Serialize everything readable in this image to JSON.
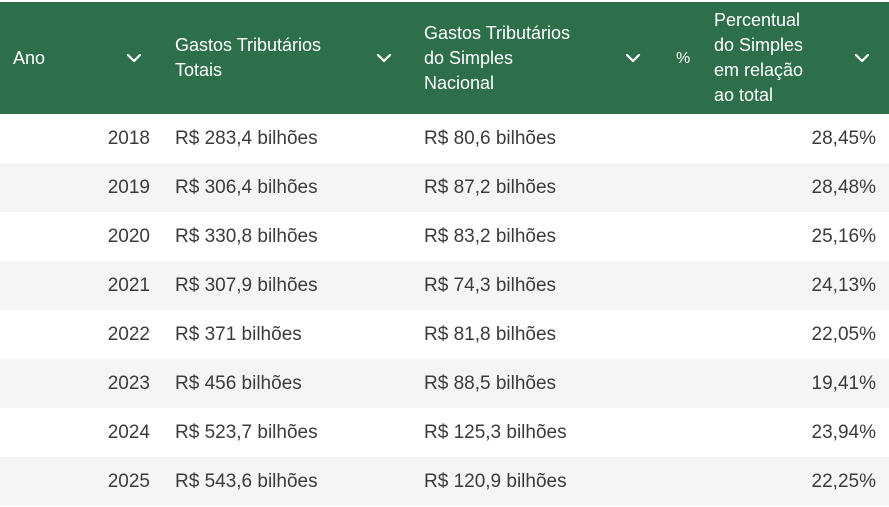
{
  "table": {
    "headers": {
      "ano": "Ano",
      "gastos_totais": [
        "Gastos Tributários",
        "Totais"
      ],
      "gastos_simples": [
        "Gastos Tributários",
        "do Simples",
        "Nacional"
      ],
      "pct_symbol": "%",
      "percentual": [
        "Percentual",
        "do Simples",
        "em relação",
        "ao total"
      ]
    },
    "rows": [
      {
        "ano": "2018",
        "totais": "R$ 283,4 bilhões",
        "simples": "R$ 80,6 bilhões",
        "percentual": "28,45%"
      },
      {
        "ano": "2019",
        "totais": "R$ 306,4 bilhões",
        "simples": "R$ 87,2 bilhões",
        "percentual": "28,48%"
      },
      {
        "ano": "2020",
        "totais": "R$ 330,8 bilhões",
        "simples": "R$ 83,2 bilhões",
        "percentual": "25,16%"
      },
      {
        "ano": "2021",
        "totais": "R$ 307,9 bilhões",
        "simples": "R$ 74,3 bilhões",
        "percentual": "24,13%"
      },
      {
        "ano": "2022",
        "totais": "R$ 371 bilhões",
        "simples": "R$ 81,8 bilhões",
        "percentual": "22,05%"
      },
      {
        "ano": "2023",
        "totais": "R$ 456 bilhões",
        "simples": "R$ 88,5 bilhões",
        "percentual": "19,41%"
      },
      {
        "ano": "2024",
        "totais": "R$ 523,7 bilhões",
        "simples": "R$ 125,3 bilhões",
        "percentual": "23,94%"
      },
      {
        "ano": "2025",
        "totais": "R$ 543,6 bilhões",
        "simples": "R$ 120,9 bilhões",
        "percentual": "22,25%"
      }
    ]
  },
  "icons": {
    "sort": "chevron-down-icon"
  },
  "colors": {
    "header_bg": "#2e6f4b",
    "header_text": "#ffffff",
    "row_alt": "#f4f5f7",
    "cell_text": "#3b3b3b"
  }
}
